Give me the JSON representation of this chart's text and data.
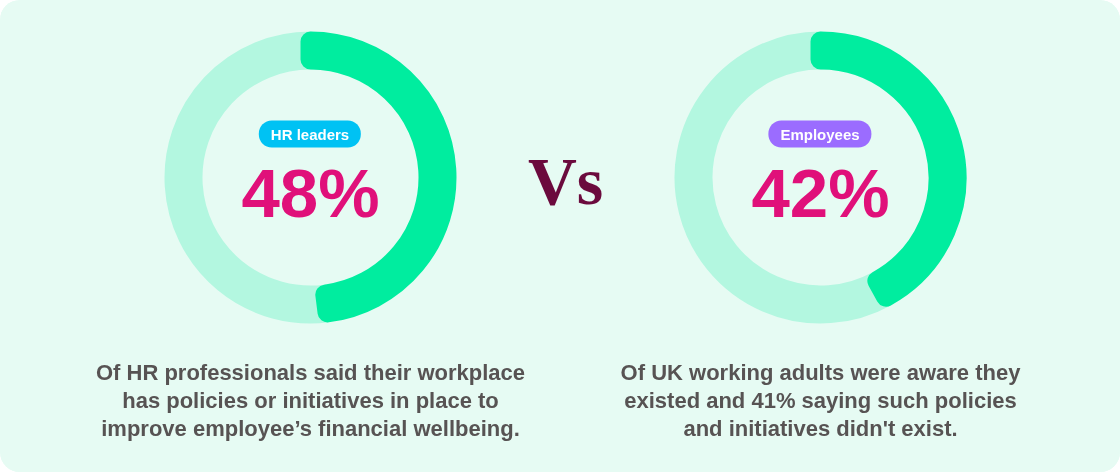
{
  "chart_data": [
    {
      "type": "donut",
      "title": "HR leaders",
      "categories": [
        null,
        null
      ],
      "values": [
        48,
        52
      ],
      "colors": [
        "#00ed9f",
        "#b3f7e0"
      ],
      "annotations": [
        "48%",
        "Of HR professionals said their workplace\nhas policies or initiatives in place to\nimprove employee’s financial wellbeing."
      ]
    },
    {
      "type": "other",
      "title": "Vs"
    },
    {
      "type": "donut",
      "title": "Employees",
      "categories": [
        null,
        null
      ],
      "values": [
        42,
        58
      ],
      "colors": [
        "#00ed9f",
        "#b3f7e0"
      ],
      "annotations": [
        "42%",
        "Of UK working adults were aware they\nexisted and 41% saying such policies\nand initiatives didn't exist."
      ]
    }
  ]
}
